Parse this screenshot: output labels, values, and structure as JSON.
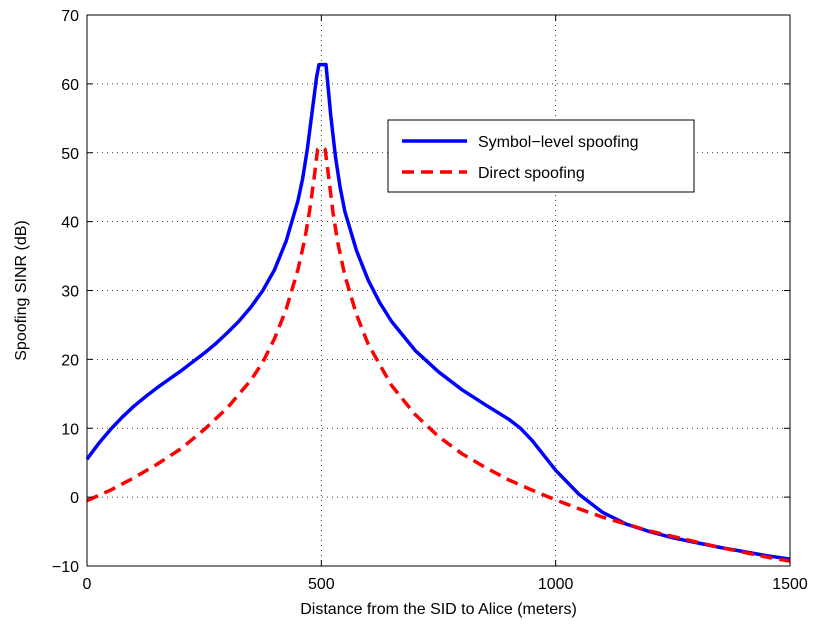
{
  "chart_data": {
    "type": "line",
    "title": "",
    "xlabel": "Distance from the SID to Alice (meters)",
    "ylabel": "Spoofing SINR (dB)",
    "xlim": [
      0,
      1500
    ],
    "ylim": [
      -10,
      70
    ],
    "xticks": [
      0,
      500,
      1000,
      1500
    ],
    "yticks": [
      -10,
      0,
      10,
      20,
      30,
      40,
      50,
      60,
      70
    ],
    "xtick_labels": [
      "0",
      "500",
      "1000",
      "1500"
    ],
    "ytick_labels": [
      "−10",
      "0",
      "10",
      "20",
      "30",
      "40",
      "50",
      "60",
      "70"
    ],
    "grid": true,
    "legend_position": "upper-right",
    "series": [
      {
        "name": "Symbol−level spoofing",
        "color": "#0000ff",
        "dash": "solid",
        "x": [
          0,
          25,
          50,
          75,
          100,
          125,
          150,
          175,
          200,
          225,
          250,
          275,
          300,
          325,
          350,
          375,
          400,
          425,
          450,
          460,
          470,
          480,
          490,
          495,
          510,
          520,
          530,
          540,
          550,
          575,
          600,
          625,
          650,
          700,
          750,
          800,
          850,
          900,
          925,
          950,
          1000,
          1050,
          1100,
          1150,
          1200,
          1250,
          1300,
          1350,
          1400,
          1450,
          1500
        ],
        "y": [
          5.5,
          7.8,
          9.8,
          11.6,
          13.2,
          14.6,
          15.9,
          17.1,
          18.3,
          19.6,
          20.9,
          22.3,
          23.9,
          25.6,
          27.6,
          30.0,
          33.0,
          37.2,
          43.0,
          46.2,
          50.5,
          55.8,
          61.0,
          62.8,
          62.8,
          55.5,
          49.5,
          45.0,
          41.5,
          35.8,
          31.5,
          28.2,
          25.5,
          21.3,
          18.2,
          15.6,
          13.4,
          11.3,
          10.0,
          8.2,
          3.9,
          0.4,
          -2.2,
          -3.9,
          -5.0,
          -5.9,
          -6.6,
          -7.3,
          -7.9,
          -8.5,
          -9.0
        ]
      },
      {
        "name": "Direct spoofing",
        "color": "#ff0000",
        "dash": "dashed",
        "x": [
          0,
          50,
          100,
          150,
          200,
          250,
          300,
          350,
          375,
          400,
          425,
          450,
          465,
          475,
          485,
          492,
          500,
          508,
          515,
          525,
          535,
          550,
          575,
          600,
          650,
          700,
          750,
          800,
          850,
          900,
          950,
          1000,
          1050,
          1100,
          1150,
          1200,
          1250,
          1300,
          1350,
          1400,
          1450,
          1500
        ],
        "y": [
          -0.5,
          1.0,
          2.8,
          4.8,
          7.0,
          9.8,
          13.0,
          17.0,
          19.6,
          23.0,
          27.3,
          33.0,
          37.5,
          41.6,
          46.5,
          50.5,
          50.8,
          50.5,
          46.8,
          41.3,
          37.0,
          32.2,
          26.5,
          22.2,
          16.2,
          12.0,
          8.8,
          6.3,
          4.3,
          2.5,
          1.0,
          -0.4,
          -1.7,
          -2.9,
          -3.9,
          -4.9,
          -5.7,
          -6.5,
          -7.3,
          -8.0,
          -8.7,
          -9.3
        ]
      }
    ]
  }
}
